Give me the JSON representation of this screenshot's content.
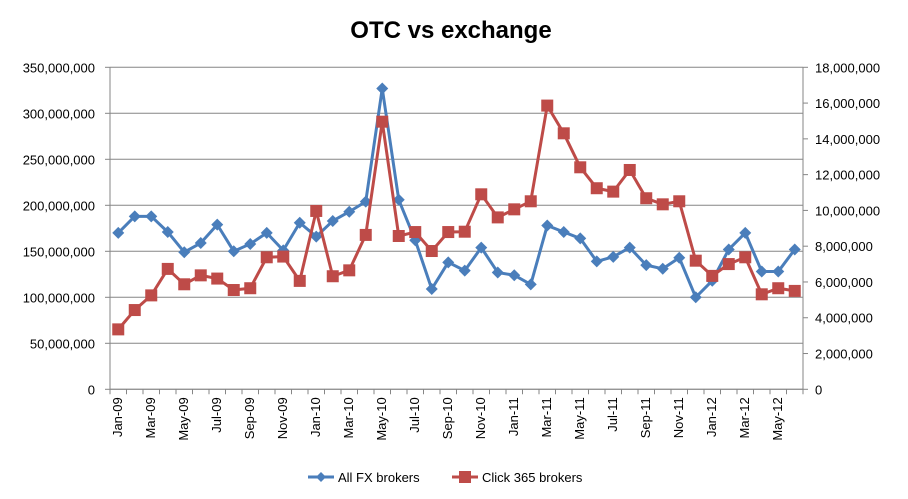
{
  "chart_data": {
    "type": "line",
    "title": "OTC vs exchange",
    "xlabel": "",
    "ylabel": "",
    "categories": [
      "Jan-09",
      "Feb-09",
      "Mar-09",
      "Apr-09",
      "May-09",
      "Jun-09",
      "Jul-09",
      "Aug-09",
      "Sep-09",
      "Oct-09",
      "Nov-09",
      "Dec-09",
      "Jan-10",
      "Feb-10",
      "Mar-10",
      "Apr-10",
      "May-10",
      "Jun-10",
      "Jul-10",
      "Aug-10",
      "Sep-10",
      "Oct-10",
      "Nov-10",
      "Dec-10",
      "Jan-11",
      "Feb-11",
      "Mar-11",
      "Apr-11",
      "May-11",
      "Jun-11",
      "Jul-11",
      "Aug-11",
      "Sep-11",
      "Oct-11",
      "Nov-11",
      "Dec-11",
      "Jan-12",
      "Feb-12",
      "Mar-12",
      "Apr-12",
      "May-12",
      "Jun-12"
    ],
    "x_tick_labels": [
      "Jan-09",
      "Mar-09",
      "May-09",
      "Jul-09",
      "Sep-09",
      "Nov-09",
      "Jan-10",
      "Mar-10",
      "May-10",
      "Jul-10",
      "Sep-10",
      "Nov-10",
      "Jan-11",
      "Mar-11",
      "May-11",
      "Jul-11",
      "Sep-11",
      "Nov-11",
      "Jan-12",
      "Mar-12",
      "May-12"
    ],
    "y_left": {
      "range": [
        0,
        350000000
      ],
      "ticks": [
        "0",
        "50,000,000",
        "100,000,000",
        "150,000,000",
        "200,000,000",
        "250,000,000",
        "300,000,000",
        "350,000,000"
      ]
    },
    "y_right": {
      "range": [
        0,
        18000000
      ],
      "ticks": [
        "0",
        "2,000,000",
        "4,000,000",
        "6,000,000",
        "8,000,000",
        "10,000,000",
        "12,000,000",
        "14,000,000",
        "16,000,000",
        "18,000,000"
      ]
    },
    "grid": true,
    "legend_position": "bottom",
    "series": [
      {
        "name": "All FX brokers",
        "axis": "left",
        "color": "#4a7ebb",
        "marker": "diamond",
        "values": [
          170000000,
          188000000,
          188000000,
          171000000,
          149000000,
          159000000,
          179000000,
          150000000,
          158000000,
          170000000,
          151000000,
          181000000,
          166000000,
          183000000,
          193000000,
          204000000,
          327000000,
          206000000,
          162000000,
          109000000,
          138000000,
          129000000,
          154000000,
          127000000,
          124000000,
          114000000,
          178000000,
          171000000,
          164000000,
          139000000,
          144000000,
          154000000,
          135000000,
          131000000,
          143000000,
          100000000,
          118000000,
          152000000,
          170000000,
          128000000,
          128000000,
          152000000
        ]
      },
      {
        "name": "Click 365 brokers",
        "axis": "right",
        "color": "#be4b48",
        "marker": "square",
        "values": [
          3350000,
          4430000,
          5250000,
          6730000,
          5870000,
          6370000,
          6190000,
          5550000,
          5650000,
          7380000,
          7420000,
          6060000,
          9970000,
          6320000,
          6650000,
          8630000,
          14960000,
          8570000,
          8790000,
          7730000,
          8790000,
          8810000,
          10900000,
          9610000,
          10060000,
          10510000,
          15860000,
          14310000,
          12410000,
          11240000,
          11050000,
          12260000,
          10680000,
          10340000,
          10510000,
          7190000,
          6340000,
          7000000,
          7380000,
          5310000,
          5650000,
          5500000
        ]
      }
    ]
  }
}
